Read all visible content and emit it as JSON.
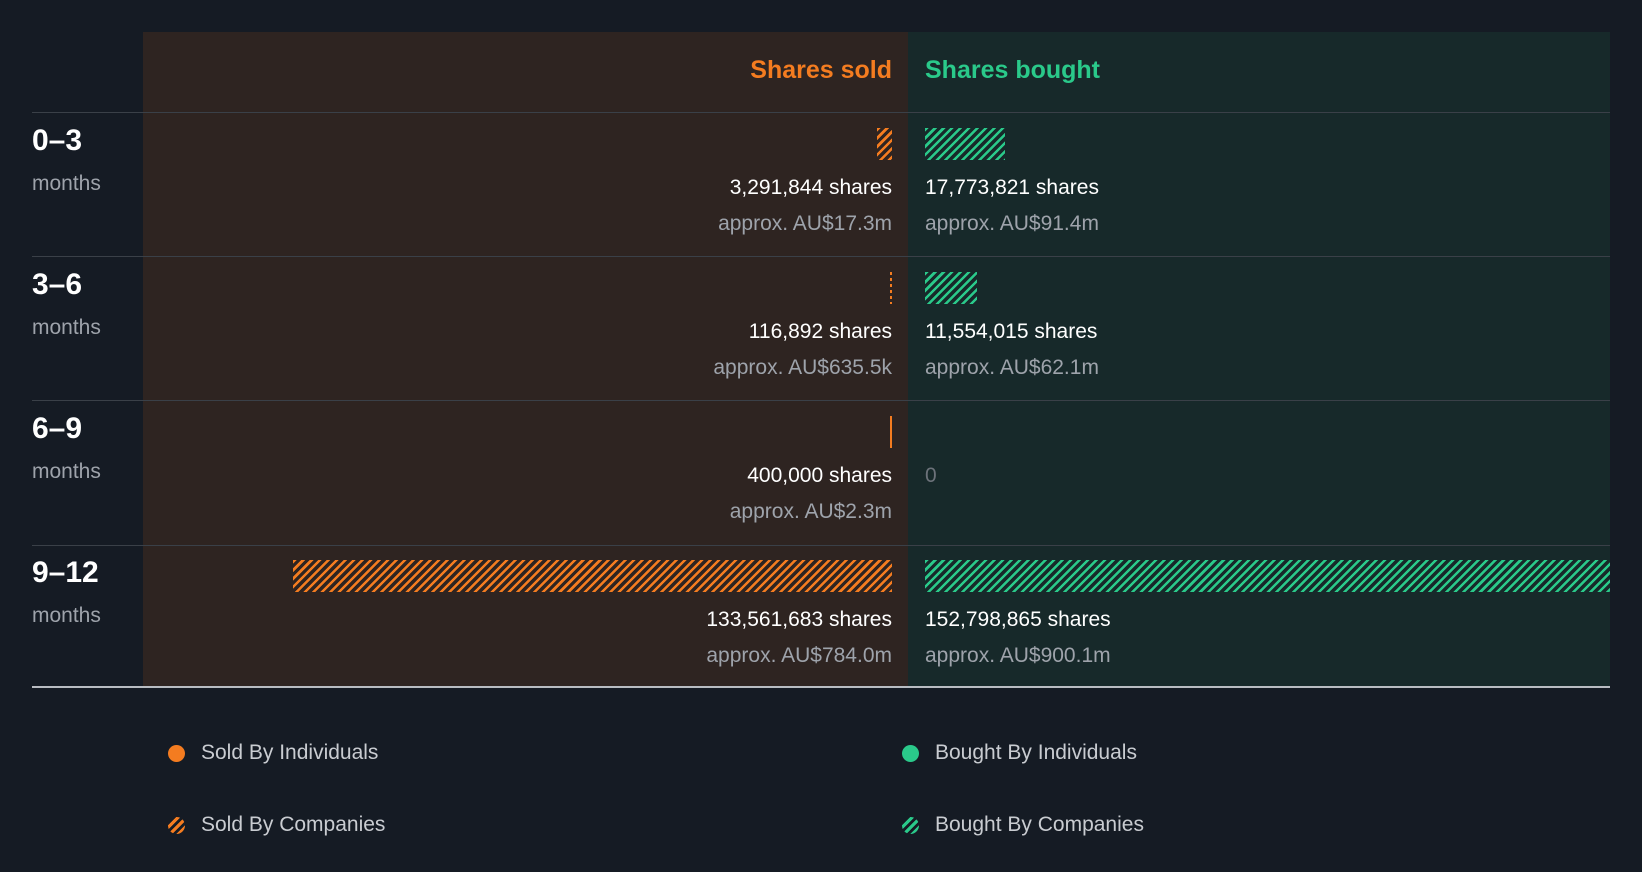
{
  "colors": {
    "sold": "#f47c20",
    "bought": "#2ac98a",
    "sold_panel": "#2e2421",
    "bought_panel": "#17292a",
    "background": "#151b24"
  },
  "headers": {
    "sold": "Shares sold",
    "bought": "Shares bought"
  },
  "chart_data": {
    "type": "bar",
    "categories": [
      "0–3 months",
      "3–6 months",
      "6–9 months",
      "9–12 months"
    ],
    "series": [
      {
        "name": "Shares sold",
        "values": [
          3291844,
          116892,
          400000,
          133561683
        ]
      },
      {
        "name": "Shares bought",
        "values": [
          17773821,
          11554015,
          0,
          152798865
        ]
      }
    ],
    "xlim": [
      0,
      152798865
    ]
  },
  "rows": [
    {
      "period": "0–3",
      "unit": "months",
      "sold": {
        "shares": "3,291,844 shares",
        "value": "approx. AU$17.3m",
        "type": "companies"
      },
      "bought": {
        "shares": "17,773,821 shares",
        "value": "approx. AU$91.4m",
        "type": "companies"
      }
    },
    {
      "period": "3–6",
      "unit": "months",
      "sold": {
        "shares": "116,892 shares",
        "value": "approx. AU$635.5k",
        "type": "companies"
      },
      "bought": {
        "shares": "11,554,015 shares",
        "value": "approx. AU$62.1m",
        "type": "companies"
      }
    },
    {
      "period": "6–9",
      "unit": "months",
      "sold": {
        "shares": "400,000 shares",
        "value": "approx. AU$2.3m",
        "type": "individuals"
      },
      "bought": {
        "zero": "0"
      }
    },
    {
      "period": "9–12",
      "unit": "months",
      "sold": {
        "shares": "133,561,683 shares",
        "value": "approx. AU$784.0m",
        "type": "companies"
      },
      "bought": {
        "shares": "152,798,865 shares",
        "value": "approx. AU$900.1m",
        "type": "companies"
      }
    }
  ],
  "legend": [
    {
      "label": "Sold By Individuals",
      "color": "#f47c20",
      "pattern": "solid"
    },
    {
      "label": "Bought By Individuals",
      "color": "#2ac98a",
      "pattern": "solid"
    },
    {
      "label": "Sold By Companies",
      "color": "#f47c20",
      "pattern": "hatched"
    },
    {
      "label": "Bought By Companies",
      "color": "#2ac98a",
      "pattern": "hatched"
    }
  ]
}
